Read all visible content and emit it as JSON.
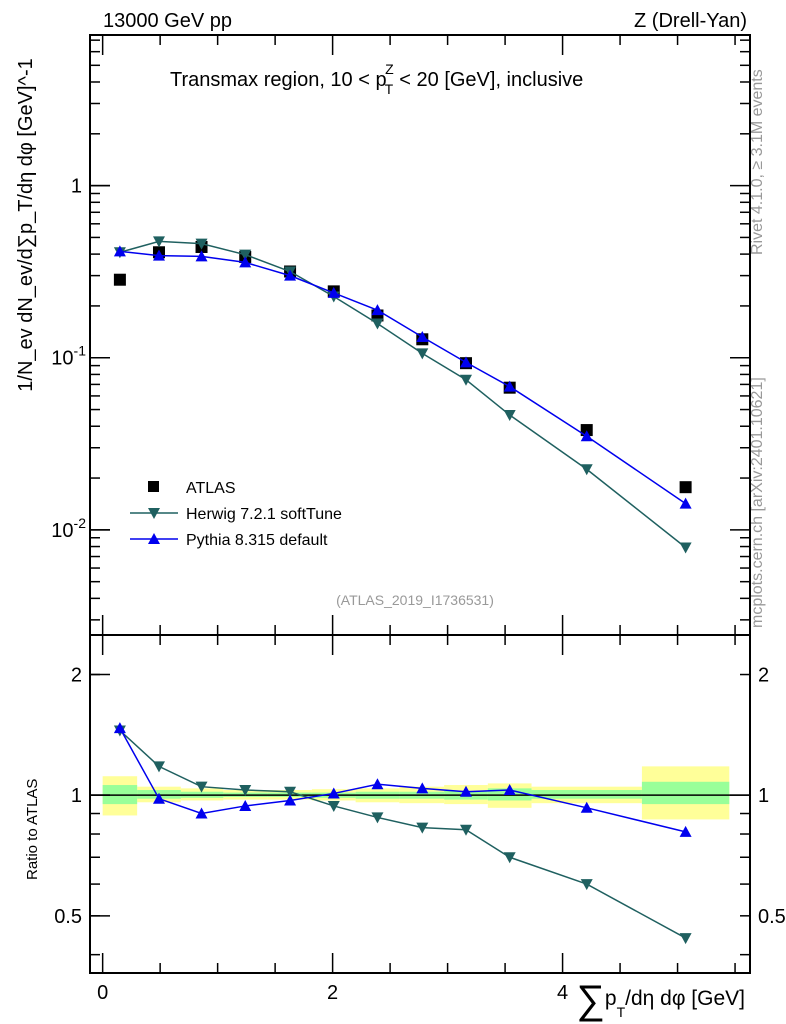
{
  "header": {
    "left": "13000 GeV pp",
    "right": "Z (Drell-Yan)"
  },
  "side_labels": {
    "rivet": "Rivet 4.1.0, ≥ 3.1M events",
    "mcplots": "mcplots.cern.ch [arXiv:2401.10621]"
  },
  "chart_data": [
    {
      "type": "line",
      "title": "Transmax region, 10 < p_T^Z < 20 [GeV], inclusive",
      "title_parts": {
        "a": "Transmax region, 10 < p",
        "sub": "T",
        "sup": "Z",
        "b": " < 20 [GeV], inclusive"
      },
      "ylabel": "1/N_ev dN_ev/d∑p_T/dη dφ [GeV]^-1",
      "ylabel_parts": {
        "a": "1/N",
        "s1": "ev",
        "b": " dN",
        "s2": "ev",
        "c": "/d",
        "sum": "∑",
        "d": "p",
        "s3": "T",
        "e": "/dη dφ  [GeV]",
        "sup": "-1"
      },
      "yscale": "log",
      "ylim": [
        0.00245,
        7.5
      ],
      "xlim": [
        -0.11,
        5.63
      ],
      "yticks": [
        {
          "v": 1,
          "label": "1"
        },
        {
          "v": 0.1,
          "label": "10",
          "exp": "-1"
        },
        {
          "v": 0.01,
          "label": "10",
          "exp": "-2"
        }
      ],
      "watermark": "(ATLAS_2019_I1736531)",
      "legend_position": "bottom-left",
      "x": [
        0.15,
        0.49,
        0.86,
        1.24,
        1.63,
        2.01,
        2.39,
        2.78,
        3.16,
        3.54,
        4.21,
        5.07
      ],
      "series": [
        {
          "name": "ATLAS",
          "marker": "square",
          "color": "#000000",
          "values": [
            0.284,
            0.41,
            0.44,
            0.385,
            0.317,
            0.243,
            0.176,
            0.128,
            0.093,
            0.067,
            0.038,
            0.0177
          ]
        },
        {
          "name": "Herwig 7.2.1 softTune",
          "marker": "triangle-down",
          "color": "#1f6060",
          "values": [
            0.41,
            0.474,
            0.46,
            0.397,
            0.317,
            0.227,
            0.158,
            0.106,
            0.0745,
            0.0465,
            0.0225,
            0.0079
          ]
        },
        {
          "name": "Pythia 8.315 default",
          "marker": "triangle-up",
          "color": "#0000ee",
          "values": [
            0.415,
            0.392,
            0.388,
            0.358,
            0.3,
            0.238,
            0.189,
            0.132,
            0.094,
            0.068,
            0.035,
            0.0142
          ]
        }
      ]
    },
    {
      "type": "line",
      "ylabel": "Ratio to ATLAS",
      "yscale": "log",
      "ylim": [
        0.36,
        2.51
      ],
      "xlim": [
        -0.11,
        5.63
      ],
      "yticks": [
        {
          "v": 2,
          "label": "2"
        },
        {
          "v": 1,
          "label": "1"
        },
        {
          "v": 0.5,
          "label": "0.5"
        }
      ],
      "xticks": [
        {
          "v": 0,
          "label": "0"
        },
        {
          "v": 2,
          "label": "2"
        },
        {
          "v": 4,
          "label": "4"
        }
      ],
      "xlabel": "∑p_T/dη dφ [GeV]",
      "xlabel_parts": {
        "sum": "∑",
        "a": "p",
        "sub": "T",
        "b": "/dη dφ [GeV]"
      },
      "bin_edges": [
        0,
        0.3,
        0.68,
        1.05,
        1.43,
        1.82,
        2.2,
        2.58,
        2.97,
        3.35,
        3.73,
        4.69,
        5.45
      ],
      "band_yellow": [
        [
          0.89,
          1.115
        ],
        [
          0.96,
          1.05
        ],
        [
          0.97,
          1.04
        ],
        [
          0.975,
          1.03
        ],
        [
          0.975,
          1.03
        ],
        [
          0.97,
          1.035
        ],
        [
          0.96,
          1.04
        ],
        [
          0.955,
          1.05
        ],
        [
          0.95,
          1.06
        ],
        [
          0.93,
          1.07
        ],
        [
          0.955,
          1.05
        ],
        [
          0.87,
          1.18
        ]
      ],
      "band_green": [
        [
          0.95,
          1.06
        ],
        [
          0.98,
          1.03
        ],
        [
          0.985,
          1.02
        ],
        [
          0.99,
          1.015
        ],
        [
          0.99,
          1.015
        ],
        [
          0.985,
          1.015
        ],
        [
          0.98,
          1.02
        ],
        [
          0.98,
          1.02
        ],
        [
          0.975,
          1.025
        ],
        [
          0.97,
          1.04
        ],
        [
          0.98,
          1.03
        ],
        [
          0.95,
          1.08
        ]
      ],
      "band_colors": {
        "yellow": "#ffff99",
        "green": "#99ff99"
      },
      "x": [
        0.15,
        0.49,
        0.86,
        1.24,
        1.63,
        2.01,
        2.39,
        2.78,
        3.16,
        3.54,
        4.21,
        5.07
      ],
      "series": [
        {
          "name": "Herwig 7.2.1 softTune",
          "marker": "triangle-down",
          "color": "#1f6060",
          "values": [
            1.45,
            1.18,
            1.05,
            1.03,
            1.02,
            0.94,
            0.88,
            0.83,
            0.82,
            0.7,
            0.6,
            0.44
          ]
        },
        {
          "name": "Pythia 8.315 default",
          "marker": "triangle-up",
          "color": "#0000ee",
          "values": [
            1.47,
            0.98,
            0.9,
            0.94,
            0.97,
            1.01,
            1.065,
            1.04,
            1.02,
            1.03,
            0.93,
            0.81
          ]
        }
      ]
    }
  ]
}
